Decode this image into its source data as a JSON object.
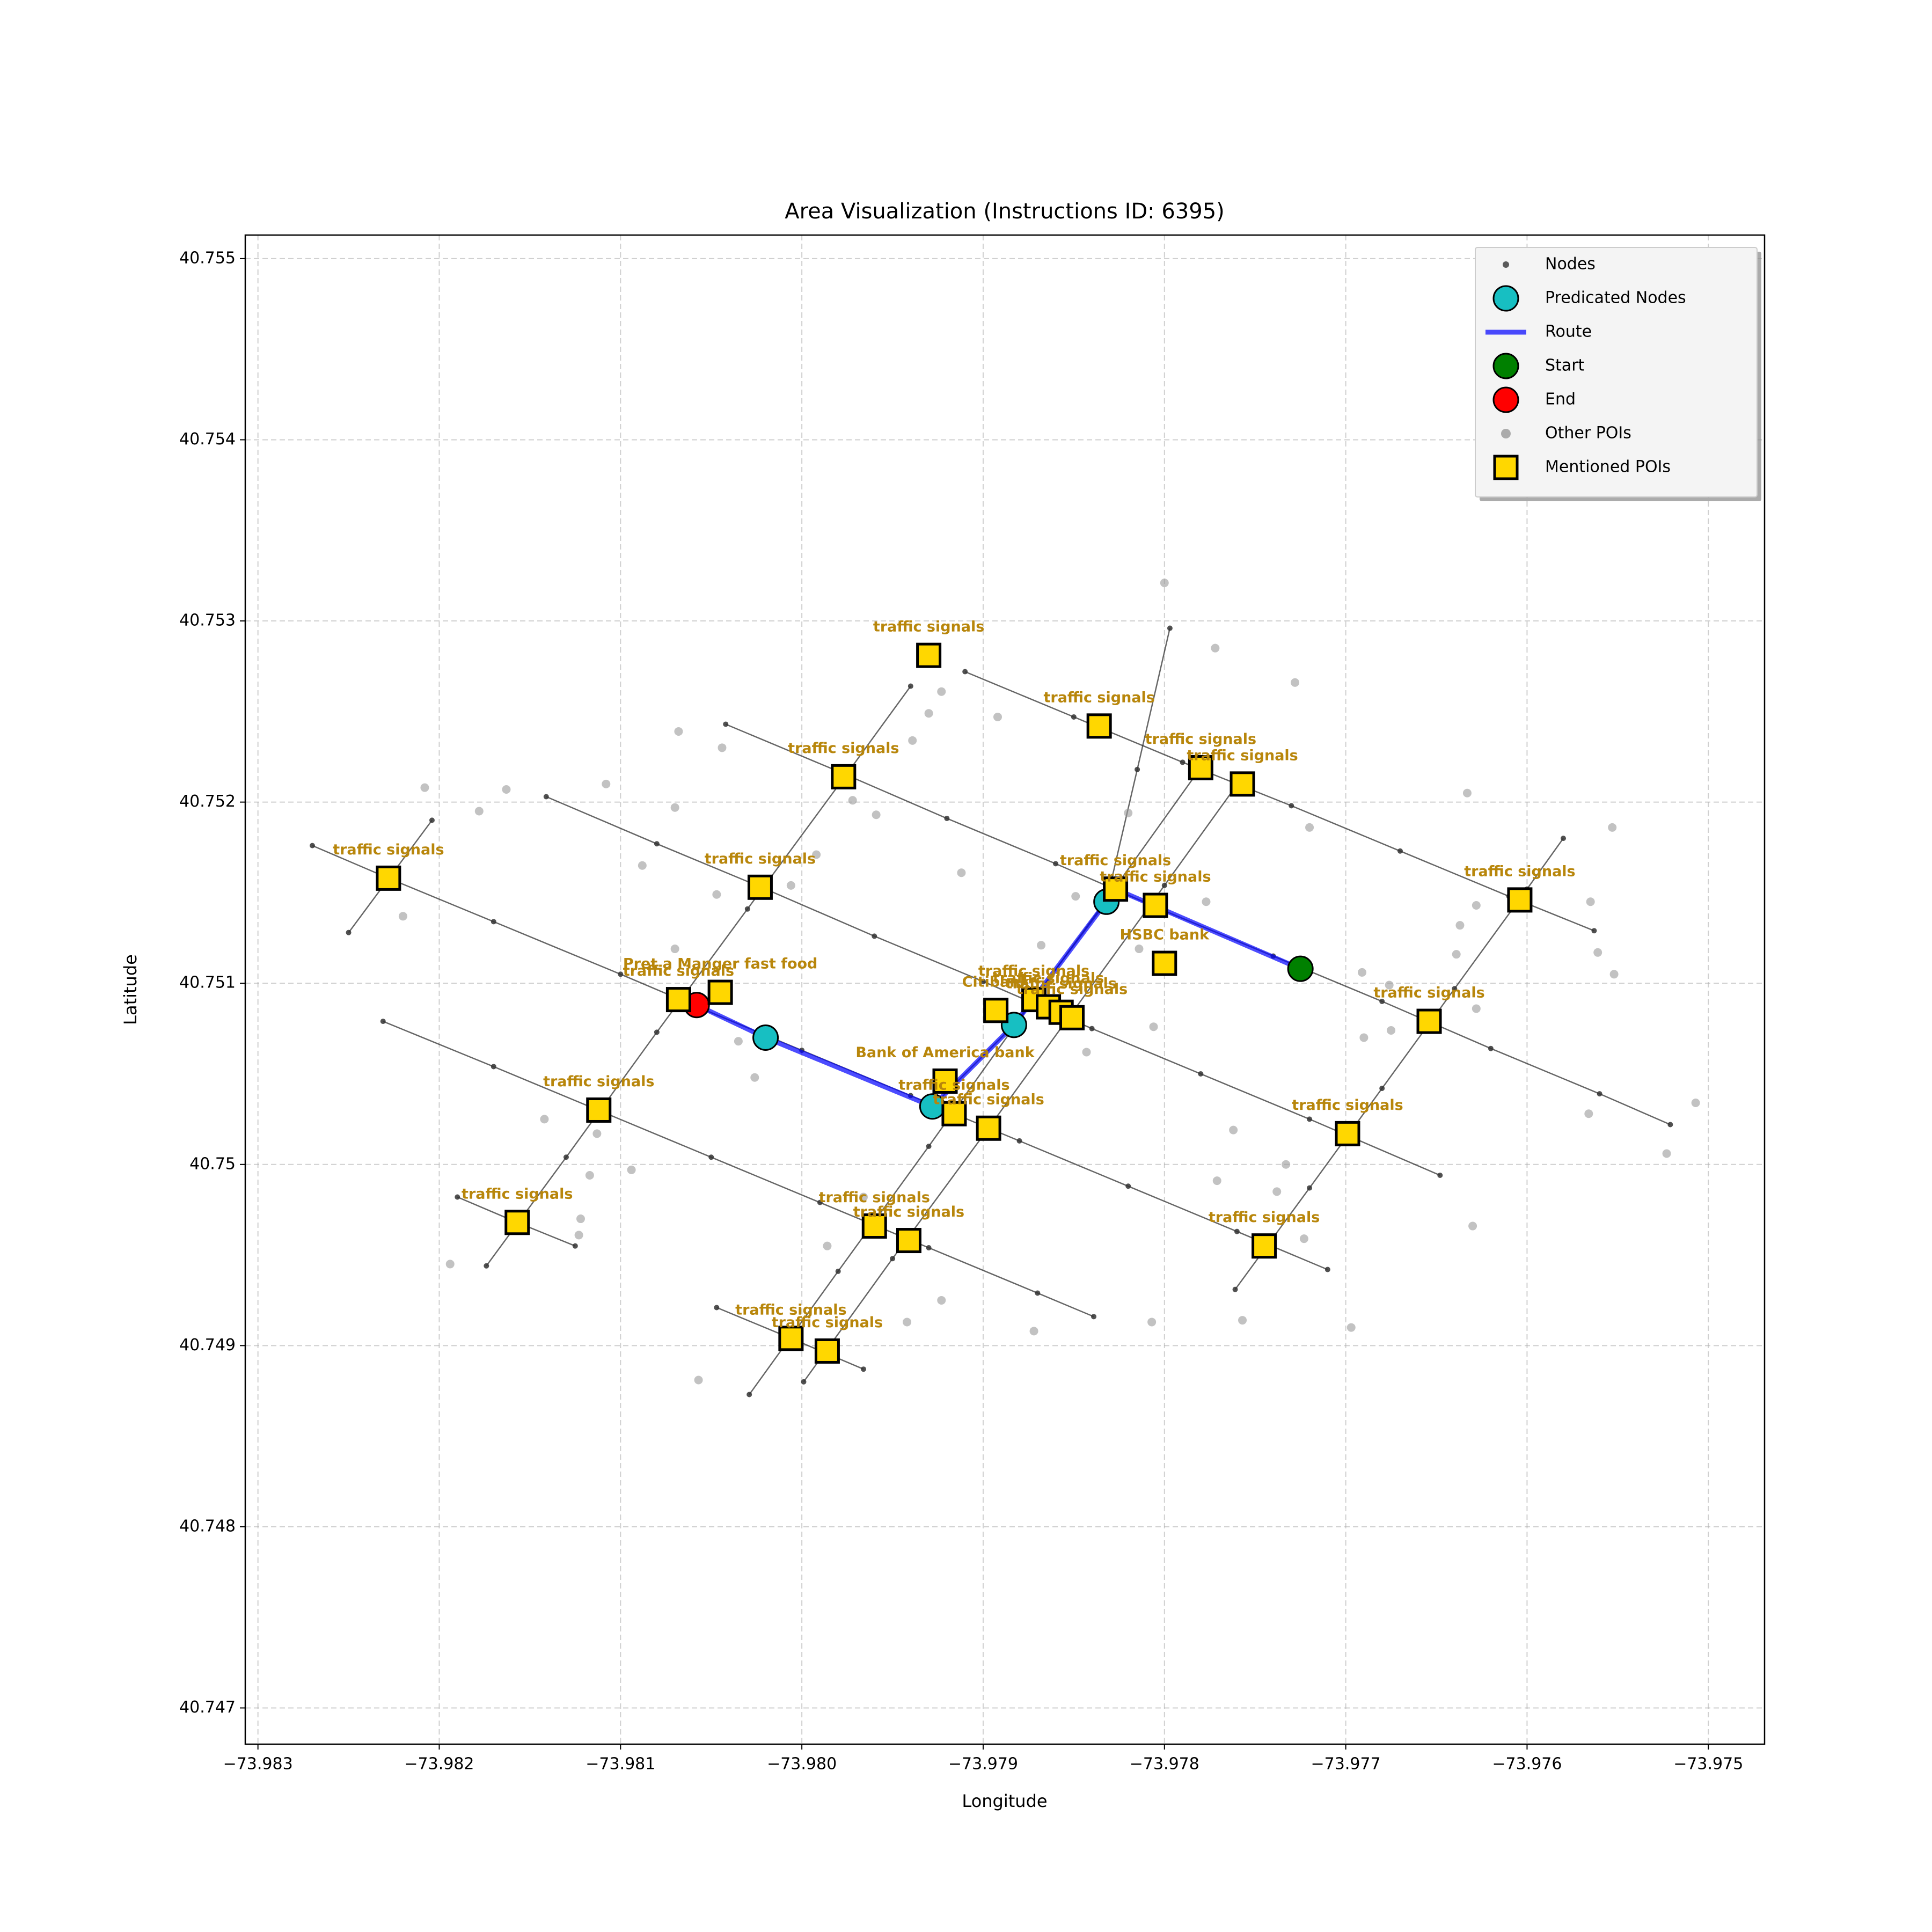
{
  "chart_data": {
    "type": "scatter",
    "title": "Area Visualization (Instructions ID: 6395)",
    "x_label": "Longitude",
    "y_label": "Latitude",
    "xlim": [
      -73.98307,
      -73.97469
    ],
    "ylim": [
      40.7468,
      40.75513
    ],
    "xticks": [
      {
        "value": -73.983,
        "label": "−73.983"
      },
      {
        "value": -73.982,
        "label": "−73.982"
      },
      {
        "value": -73.981,
        "label": "−73.981"
      },
      {
        "value": -73.98,
        "label": "−73.980"
      },
      {
        "value": -73.979,
        "label": "−73.979"
      },
      {
        "value": -73.978,
        "label": "−73.978"
      },
      {
        "value": -73.977,
        "label": "−73.977"
      },
      {
        "value": -73.976,
        "label": "−73.976"
      },
      {
        "value": -73.975,
        "label": "−73.975"
      }
    ],
    "yticks": [
      40.747,
      40.748,
      40.749,
      40.75,
      40.751,
      40.752,
      40.753,
      40.754,
      40.755
    ],
    "grid": true,
    "legend": "upper right",
    "series": [
      {
        "name": "Nodes",
        "marker": "dot",
        "color": "#333333",
        "x": [
          -73.9827,
          -73.98228,
          -73.9817,
          -73.981,
          -73.9806,
          -73.98,
          -73.9794,
          -73.9788,
          -73.9782,
          -73.9776,
          -73.9771,
          null,
          -73.98141,
          -73.9808,
          -73.9802,
          -73.9796,
          -73.979,
          -73.9784,
          -73.9778,
          -73.9772,
          -73.97648,
          null,
          -73.98042,
          -73.9798,
          -73.9792,
          -73.9786,
          -73.978,
          -73.9774,
          -73.9768,
          -73.9762,
          -73.9756,
          -73.97521,
          null,
          -73.9791,
          -73.9785,
          -73.9779,
          -73.9773,
          -73.9767,
          -73.9761,
          -73.97563,
          null,
          -73.98231,
          -73.9817,
          -73.9811,
          -73.9805,
          -73.9799,
          -73.9793,
          -73.9787,
          -73.97839,
          null,
          -73.9819,
          -73.98157,
          -73.98125,
          null,
          -73.98047,
          -73.98006,
          -73.97966,
          null,
          -73.9825,
          -73.98227,
          -73.98204,
          null,
          -73.98174,
          -73.9813,
          -73.9808,
          -73.9803,
          -73.9798,
          -73.9794,
          null,
          -73.98029,
          -73.9798,
          -73.9793,
          -73.9788,
          -73.9783,
          -73.9778,
          null,
          -73.97999,
          -73.9795,
          -73.979,
          -73.9785,
          -73.978,
          -73.97759,
          null,
          -73.97928,
          -73.97883,
          -73.97832,
          -73.97815,
          -73.97797,
          null,
          -73.97761,
          -73.9772,
          -73.9768,
          -73.9764,
          -73.976,
          -73.9758
        ],
        "y": [
          40.75176,
          40.75158,
          40.75134,
          40.75105,
          40.75088,
          40.75063,
          40.75038,
          40.75013,
          40.74988,
          40.74963,
          40.74942,
          null,
          40.75203,
          40.75177,
          40.75152,
          40.75126,
          40.75101,
          40.75075,
          40.7505,
          40.75025,
          40.74994,
          null,
          40.75243,
          40.75217,
          40.75191,
          40.75166,
          40.7514,
          40.75115,
          40.7509,
          40.75064,
          40.75039,
          40.75022,
          null,
          40.75272,
          40.75247,
          40.75222,
          40.75198,
          40.75173,
          40.75148,
          40.75129,
          null,
          40.75079,
          40.75054,
          40.75029,
          40.75004,
          40.74979,
          40.74954,
          40.74929,
          40.74916,
          null,
          40.74982,
          40.74968,
          40.74955,
          null,
          40.74921,
          40.74904,
          40.74887,
          null,
          40.75128,
          40.75159,
          40.7519,
          null,
          40.74944,
          40.75004,
          40.75073,
          40.75141,
          40.75209,
          40.75264,
          null,
          40.74873,
          40.74941,
          40.7501,
          40.7508,
          40.75149,
          40.75219,
          null,
          40.7488,
          40.74948,
          40.75016,
          40.75085,
          40.75154,
          40.75211,
          null,
          40.75032,
          40.75077,
          40.75145,
          40.75218,
          40.75296,
          null,
          40.74931,
          40.74987,
          40.75042,
          40.75097,
          40.75152,
          40.7518
        ]
      },
      {
        "name": "Predicated Nodes",
        "marker": "circle",
        "color": "#17bfc2",
        "x": [
          -73.97832,
          -73.97883,
          -73.97928,
          -73.9802
        ],
        "y": [
          40.75145,
          40.75077,
          40.75032,
          40.7507
        ]
      },
      {
        "name": "Route",
        "marker": "line",
        "color": "#0000ff",
        "x": [
          -73.97725,
          -73.97827,
          -73.97832,
          -73.97883,
          -73.97928,
          -73.9802,
          -73.98058
        ],
        "y": [
          40.75108,
          40.75152,
          40.75145,
          40.75077,
          40.75032,
          40.7507,
          40.75088
        ]
      },
      {
        "name": "Start",
        "marker": "circle",
        "color": "#008000",
        "x": [
          -73.97725
        ],
        "y": [
          40.75108
        ]
      },
      {
        "name": "End",
        "marker": "circle",
        "color": "#ff0000",
        "x": [
          -73.98058
        ],
        "y": [
          40.75088
        ]
      },
      {
        "name": "Other POIs",
        "marker": "dot",
        "color": "#999999",
        "x": [
          -73.978,
          -73.97772,
          -73.97728,
          -73.97923,
          -73.9793,
          -73.97892,
          -73.98068,
          -73.98044,
          -73.97939,
          -73.98108,
          -73.9807,
          -73.98163,
          -73.98208,
          -73.98178,
          -73.97972,
          -73.97959,
          -73.97992,
          -73.98006,
          -73.98047,
          -73.98088,
          -73.9822,
          -73.97912,
          -73.97849,
          -73.9782,
          -73.97777,
          -73.9772,
          -73.97633,
          -73.97553,
          -73.97565,
          -73.97628,
          -73.97637,
          -73.97639,
          -73.97561,
          -73.97552,
          -73.97691,
          -73.97676,
          -73.97628,
          -73.97675,
          -73.9769,
          -73.97806,
          -73.97843,
          -73.98026,
          -73.98035,
          -73.9807,
          -73.98142,
          -73.98113,
          -73.98094,
          -73.98117,
          -73.98122,
          -73.98123,
          -73.98194,
          -73.97966,
          -73.97986,
          -73.97923,
          -73.97942,
          -73.97872,
          -73.97807,
          -73.97757,
          -73.97697,
          -73.9763,
          -73.97723,
          -73.97738,
          -73.97733,
          -73.97762,
          -73.97771,
          -73.98057,
          -73.97507,
          -73.97523,
          -73.97566,
          -73.97814,
          -73.97868
        ],
        "y": [
          40.75321,
          40.75285,
          40.75266,
          40.75261,
          40.75249,
          40.75247,
          40.75239,
          40.7523,
          40.75234,
          40.7521,
          40.75197,
          40.75207,
          40.75208,
          40.75195,
          40.75201,
          40.75193,
          40.75171,
          40.75154,
          40.75149,
          40.75165,
          40.75137,
          40.75161,
          40.75148,
          40.75194,
          40.75145,
          40.75186,
          40.75205,
          40.75186,
          40.75145,
          40.75143,
          40.75132,
          40.75116,
          40.75117,
          40.75105,
          40.75106,
          40.75099,
          40.75086,
          40.75074,
          40.7507,
          40.75076,
          40.75062,
          40.75048,
          40.75068,
          40.75119,
          40.75025,
          40.75017,
          40.74997,
          40.74994,
          40.7497,
          40.74961,
          40.74945,
          40.74982,
          40.74955,
          40.74925,
          40.74913,
          40.74908,
          40.74913,
          40.74914,
          40.7491,
          40.74966,
          40.74959,
          40.74985,
          40.75,
          40.75019,
          40.74991,
          40.74881,
          40.75034,
          40.75006,
          40.75028,
          40.75119,
          40.75121
        ]
      },
      {
        "name": "Mentioned POIs",
        "marker": "square",
        "color": "#ffd700",
        "x": [
          -73.9793,
          -73.97977,
          -73.97836,
          -73.9778,
          -73.97757,
          -73.98228,
          -73.98023,
          -73.97827,
          -73.97805,
          -73.97604,
          -73.978,
          -73.98068,
          -73.98045,
          -73.97893,
          -73.97872,
          -73.97864,
          -73.97857,
          -73.97851,
          -73.97654,
          -73.97921,
          -73.97916,
          -73.97897,
          -73.97699,
          -73.98112,
          -73.98157,
          -73.9796,
          -73.97941,
          -73.97745,
          -73.98006,
          -73.97986
        ],
        "y": [
          40.75281,
          40.75214,
          40.75242,
          40.75219,
          40.7521,
          40.75158,
          40.75153,
          40.75152,
          40.75143,
          40.75146,
          40.75111,
          40.75091,
          40.75095,
          40.75085,
          40.75091,
          40.75087,
          40.75084,
          40.75081,
          40.75079,
          40.75046,
          40.75028,
          40.7502,
          40.75017,
          40.7503,
          40.74968,
          40.74966,
          40.74958,
          40.74955,
          40.74904,
          40.74897
        ],
        "labels": [
          "traffic signals",
          "traffic signals",
          "traffic signals",
          "traffic signals",
          "traffic signals",
          "traffic signals",
          "traffic signals",
          "traffic signals",
          "traffic signals",
          "traffic signals",
          "HSBC bank",
          "traffic signals",
          "Pret a Manger fast food",
          "Citibank",
          "traffic signals",
          "traffic signals",
          "traffic signals",
          "traffic signals",
          "traffic signals",
          "Bank of America bank",
          "traffic signals",
          "traffic signals",
          "traffic signals",
          "traffic signals",
          "traffic signals",
          "traffic signals",
          "traffic signals",
          "traffic signals",
          "traffic signals",
          "traffic signals"
        ]
      }
    ]
  }
}
